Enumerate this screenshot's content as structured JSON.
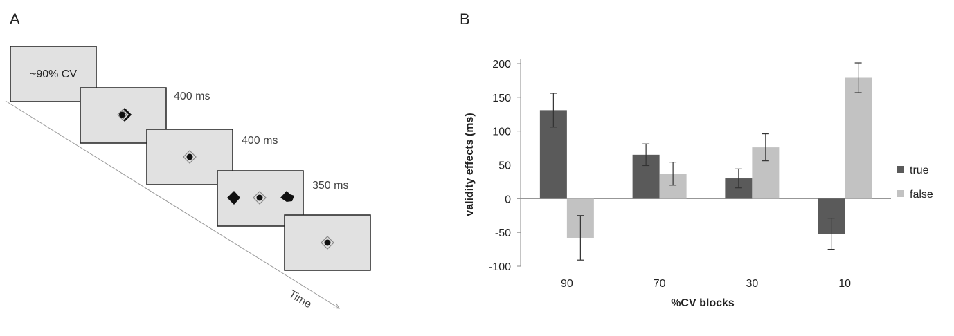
{
  "panel_a": {
    "label": "A",
    "first_screen_text": "~90% CV",
    "durations": [
      "400 ms",
      "400 ms",
      "350 ms"
    ],
    "time_label": "Time"
  },
  "chart_data": {
    "type": "bar",
    "panel_label": "B",
    "title": "",
    "xlabel": "%CV blocks",
    "ylabel": "validity effects (ms)",
    "categories": [
      "90",
      "70",
      "30",
      "10"
    ],
    "series": [
      {
        "name": "true",
        "color": "#5a5a5a",
        "values": [
          131,
          65,
          30,
          -52
        ],
        "errors": [
          25,
          16,
          14,
          23
        ]
      },
      {
        "name": "false",
        "color": "#c2c2c2",
        "values": [
          -58,
          37,
          76,
          179
        ],
        "errors": [
          33,
          17,
          20,
          22
        ]
      }
    ],
    "ylim": [
      -100,
      200
    ],
    "yticks": [
      -100,
      -50,
      0,
      50,
      100,
      150,
      200
    ],
    "legend_position": "right",
    "grid": false
  }
}
